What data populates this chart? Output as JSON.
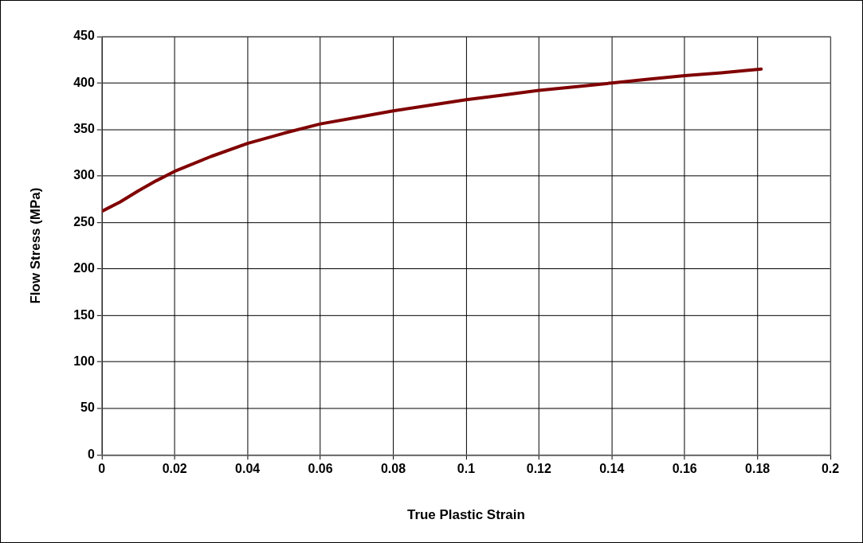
{
  "chart_data": {
    "type": "line",
    "xlabel": "True Plastic Strain",
    "ylabel": "Flow Stress (MPa)",
    "xlim": [
      0,
      0.2
    ],
    "xticks": [
      0,
      0.02,
      0.04,
      0.06,
      0.08,
      0.1,
      0.12,
      0.14,
      0.16,
      0.18,
      0.2
    ],
    "ylim": [
      0,
      450
    ],
    "yticks": [
      0,
      50,
      100,
      150,
      200,
      250,
      300,
      350,
      400,
      450
    ],
    "grid": true,
    "legend": false,
    "series": [
      {
        "color": "#800000",
        "x": [
          0,
          0.005,
          0.01,
          0.015,
          0.02,
          0.03,
          0.04,
          0.05,
          0.06,
          0.07,
          0.08,
          0.09,
          0.1,
          0.11,
          0.12,
          0.13,
          0.14,
          0.15,
          0.16,
          0.17,
          0.181
        ],
        "values": [
          262,
          272,
          284,
          295,
          305,
          321,
          335,
          346,
          356,
          363,
          370,
          376,
          382,
          387,
          392,
          396,
          400,
          404,
          408,
          411,
          415
        ]
      }
    ]
  }
}
